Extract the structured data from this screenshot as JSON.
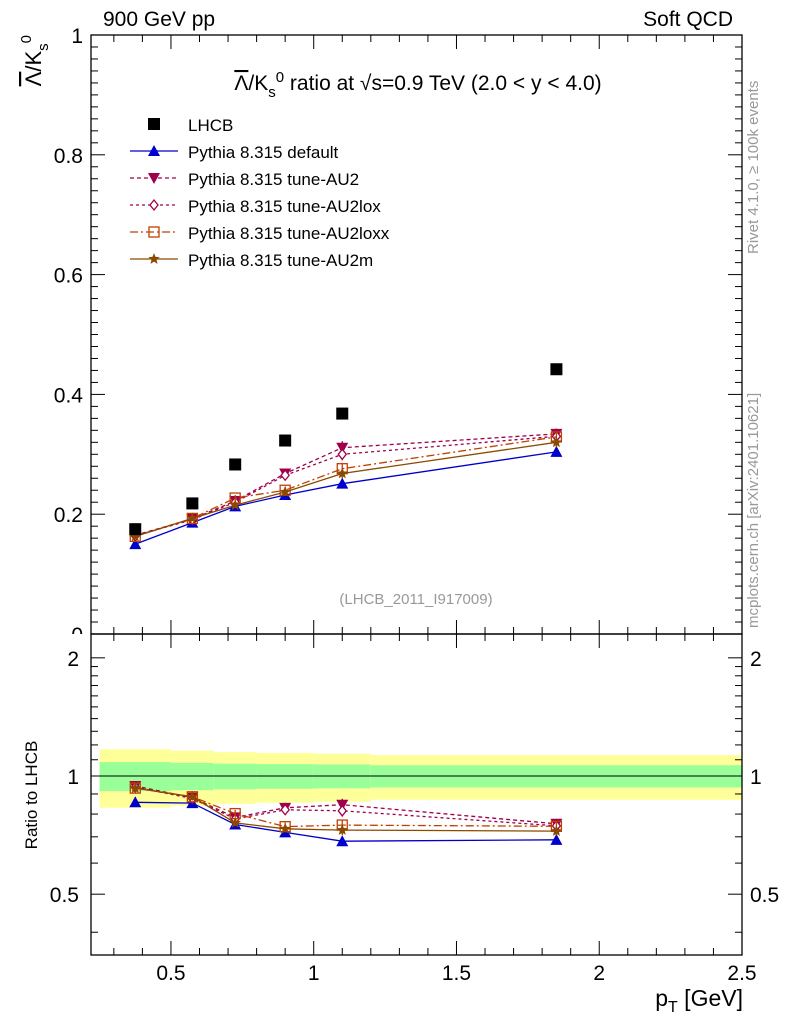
{
  "header": {
    "left": "900 GeV pp",
    "right": "Soft QCD"
  },
  "side": {
    "rivet": "Rivet 4.1.0, ≥ 100k events",
    "site": "mcplots.cern.ch [arXiv:2401.10621]"
  },
  "chart_data": {
    "type": "line",
    "title": "Λ/K0s ratio at √s=0.9 TeV (2.0 < y < 4.0)",
    "analysis": "(LHCB_2011_I917009)",
    "xlabel": "p_T [GeV]",
    "ylabel": "Λ/K0s",
    "ratio_ylabel": "Ratio to LHCB",
    "xlim": [
      0.22,
      2.5
    ],
    "ylim": [
      0,
      1.0
    ],
    "ratio_ylim": [
      0.35,
      2.3
    ],
    "x_ticks": [
      "0.5",
      "1",
      "1.5",
      "2",
      "2.5"
    ],
    "y_ticks": [
      "0",
      "0.2",
      "0.4",
      "0.6",
      "0.8",
      "1"
    ],
    "ratio_ticks": [
      "0.5",
      "1",
      "2"
    ],
    "x": [
      0.375,
      0.575,
      0.725,
      0.9,
      1.1,
      1.85
    ],
    "bin_edges": [
      0.25,
      0.5,
      0.65,
      0.8,
      1.0,
      1.2,
      2.5
    ],
    "reference": {
      "name": "LHCB",
      "values": [
        0.175,
        0.218,
        0.283,
        0.323,
        0.368,
        0.442
      ],
      "band_inner": [
        0.085,
        0.08,
        0.075,
        0.072,
        0.07,
        0.065
      ],
      "band_outer": [
        0.17,
        0.16,
        0.15,
        0.145,
        0.14,
        0.13
      ]
    },
    "series": [
      {
        "name": "Pythia 8.315 default",
        "color": "#0000cc",
        "dash": "",
        "marker": "triangle-up",
        "values": [
          0.15,
          0.186,
          0.213,
          0.232,
          0.251,
          0.304
        ],
        "errors": [
          0.004,
          0.004,
          0.004,
          0.005,
          0.007,
          0.008
        ]
      },
      {
        "name": "Pythia 8.315 tune-AU2",
        "color": "#a0004a",
        "dash": "4,3",
        "marker": "triangle-down",
        "values": [
          0.165,
          0.192,
          0.222,
          0.268,
          0.311,
          0.334
        ],
        "errors": [
          0.004,
          0.004,
          0.005,
          0.008,
          0.011,
          0.009
        ]
      },
      {
        "name": "Pythia 8.315 tune-AU2lox",
        "color": "#a0004a",
        "dash": "3,3",
        "marker": "diamond",
        "values": [
          0.164,
          0.191,
          0.22,
          0.265,
          0.3,
          0.33
        ],
        "errors": [
          0.004,
          0.004,
          0.005,
          0.008,
          0.01,
          0.009
        ]
      },
      {
        "name": "Pythia 8.315 tune-AU2loxx",
        "color": "#c04000",
        "dash": "8,3,2,3",
        "marker": "square",
        "values": [
          0.163,
          0.193,
          0.227,
          0.24,
          0.276,
          0.329
        ],
        "errors": [
          0.004,
          0.004,
          0.005,
          0.006,
          0.009,
          0.009
        ]
      },
      {
        "name": "Pythia 8.315 tune-AU2m",
        "color": "#8b4a00",
        "dash": "",
        "marker": "star",
        "values": [
          0.163,
          0.193,
          0.215,
          0.237,
          0.268,
          0.32
        ],
        "errors": [
          0.004,
          0.004,
          0.004,
          0.005,
          0.008,
          0.008
        ]
      }
    ]
  }
}
